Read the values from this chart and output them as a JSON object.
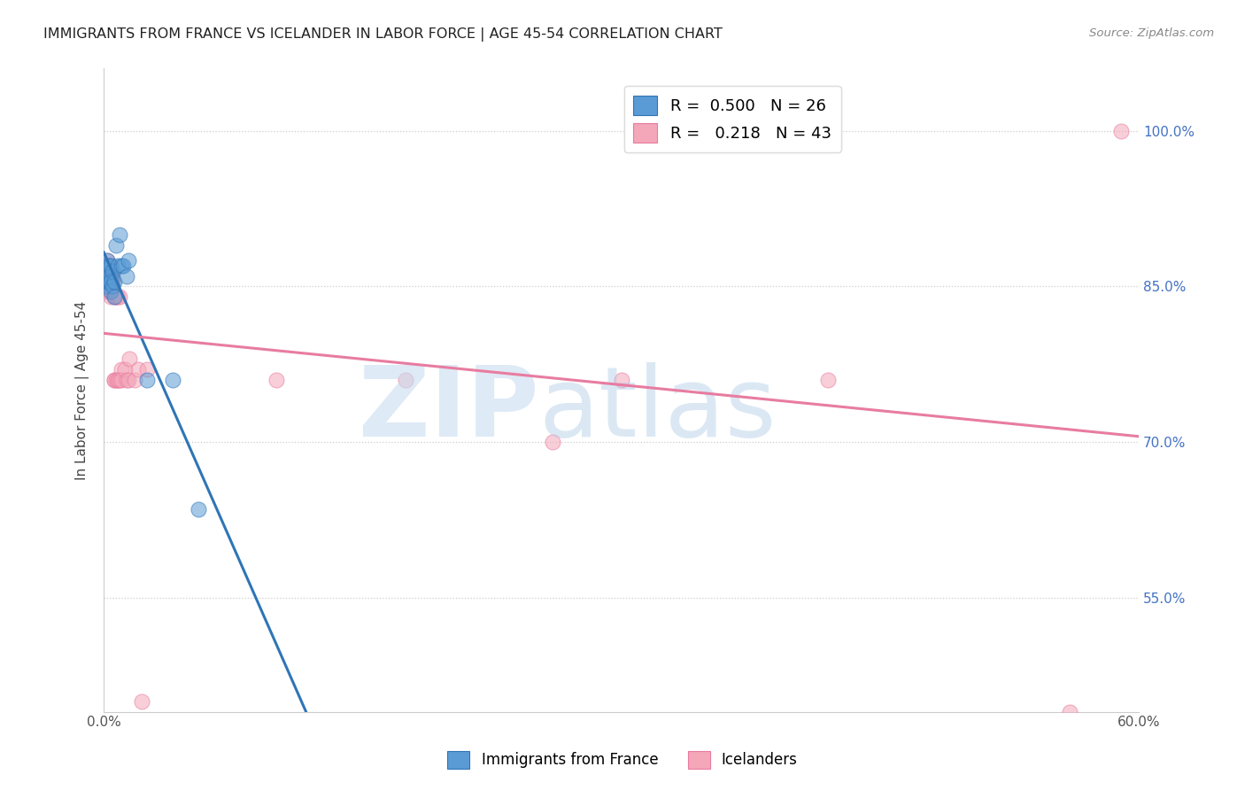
{
  "title": "IMMIGRANTS FROM FRANCE VS ICELANDER IN LABOR FORCE | AGE 45-54 CORRELATION CHART",
  "source": "Source: ZipAtlas.com",
  "ylabel": "In Labor Force | Age 45-54",
  "xlim": [
    0.0,
    0.6
  ],
  "ylim": [
    0.44,
    1.06
  ],
  "xticks": [
    0.0,
    0.1,
    0.2,
    0.3,
    0.4,
    0.5,
    0.6
  ],
  "xtick_labels": [
    "0.0%",
    "",
    "",
    "",
    "",
    "",
    "60.0%"
  ],
  "ytick_labels_right": [
    "55.0%",
    "70.0%",
    "85.0%",
    "100.0%"
  ],
  "ytick_values": [
    0.55,
    0.7,
    0.85,
    1.0
  ],
  "legend_label_blue": "R =  0.500   N = 26",
  "legend_label_pink": "R =   0.218   N = 43",
  "legend_bottom_blue": "Immigrants from France",
  "legend_bottom_pink": "Icelanders",
  "blue_color": "#5B9BD5",
  "pink_color": "#F4A7B9",
  "blue_line_color": "#2E75B6",
  "pink_line_color": "#E87CA0",
  "france_x": [
    0.001,
    0.001,
    0.002,
    0.002,
    0.002,
    0.003,
    0.003,
    0.003,
    0.004,
    0.004,
    0.004,
    0.004,
    0.005,
    0.005,
    0.006,
    0.006,
    0.007,
    0.008,
    0.009,
    0.01,
    0.011,
    0.013,
    0.014,
    0.025,
    0.04,
    0.055
  ],
  "france_y": [
    0.87,
    0.855,
    0.875,
    0.86,
    0.85,
    0.87,
    0.855,
    0.855,
    0.87,
    0.86,
    0.855,
    0.845,
    0.865,
    0.85,
    0.855,
    0.84,
    0.89,
    0.87,
    0.9,
    0.87,
    0.87,
    0.86,
    0.875,
    0.76,
    0.76,
    0.635
  ],
  "iceland_x": [
    0.001,
    0.001,
    0.001,
    0.002,
    0.002,
    0.002,
    0.003,
    0.003,
    0.003,
    0.004,
    0.004,
    0.004,
    0.005,
    0.005,
    0.005,
    0.006,
    0.006,
    0.006,
    0.007,
    0.007,
    0.007,
    0.008,
    0.008,
    0.008,
    0.009,
    0.009,
    0.01,
    0.01,
    0.012,
    0.013,
    0.014,
    0.015,
    0.018,
    0.02,
    0.022,
    0.025,
    0.1,
    0.175,
    0.26,
    0.3,
    0.42,
    0.56,
    0.59
  ],
  "iceland_y": [
    0.87,
    0.855,
    0.845,
    0.875,
    0.87,
    0.855,
    0.87,
    0.86,
    0.845,
    0.855,
    0.84,
    0.87,
    0.855,
    0.845,
    0.86,
    0.84,
    0.76,
    0.76,
    0.84,
    0.76,
    0.84,
    0.76,
    0.76,
    0.84,
    0.76,
    0.84,
    0.77,
    0.76,
    0.77,
    0.76,
    0.76,
    0.78,
    0.76,
    0.77,
    0.45,
    0.77,
    0.76,
    0.76,
    0.7,
    0.76,
    0.76,
    0.44,
    1.0
  ]
}
